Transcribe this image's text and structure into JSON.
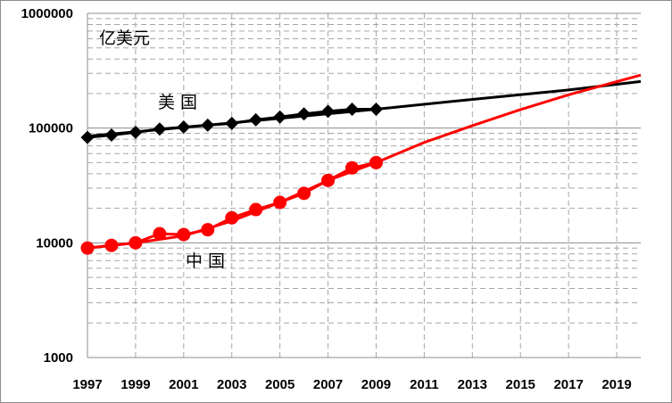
{
  "chart_data": {
    "type": "line",
    "y_scale": "log",
    "ylim": [
      1000,
      1000000
    ],
    "xlim": [
      1997,
      2020
    ],
    "ylabel": "亿美元",
    "y_ticks": [
      "1000000",
      "100000",
      "10000",
      "1000"
    ],
    "x_ticks": [
      "1997",
      "1999",
      "2001",
      "2003",
      "2005",
      "2007",
      "2009",
      "2011",
      "2013",
      "2015",
      "2017",
      "2019"
    ],
    "grid": true,
    "series": [
      {
        "name": "美 国",
        "color": "#000000",
        "marker": "diamond",
        "x": [
          1997,
          1998,
          1999,
          2000,
          2001,
          2002,
          2003,
          2004,
          2005,
          2006,
          2007,
          2008,
          2009
        ],
        "values": [
          83000,
          87000,
          92000,
          98000,
          102000,
          106000,
          110000,
          118000,
          125000,
          133000,
          140000,
          146000,
          146000
        ]
      },
      {
        "name": "中 国",
        "color": "#ff0000",
        "marker": "circle",
        "x": [
          1997,
          1998,
          1999,
          2000,
          2001,
          2002,
          2003,
          2004,
          2005,
          2006,
          2007,
          2008,
          2009
        ],
        "values": [
          9000,
          9500,
          10000,
          12000,
          11800,
          13000,
          16500,
          19500,
          22500,
          27000,
          35000,
          45000,
          50000
        ]
      }
    ],
    "trendlines": [
      {
        "series": "美 国",
        "color": "#000000",
        "x": [
          1997,
          2002,
          2009,
          2013,
          2017,
          2020
        ],
        "values": [
          85000,
          106000,
          146000,
          178000,
          215000,
          255000
        ]
      },
      {
        "series": "中 国",
        "color": "#ff0000",
        "x": [
          1997,
          1999,
          2001,
          2003,
          2005,
          2007,
          2009,
          2011,
          2013,
          2015,
          2017,
          2020
        ],
        "values": [
          9000,
          10000,
          11500,
          15500,
          22500,
          35000,
          50000,
          75000,
          105000,
          145000,
          195000,
          290000
        ]
      }
    ]
  }
}
